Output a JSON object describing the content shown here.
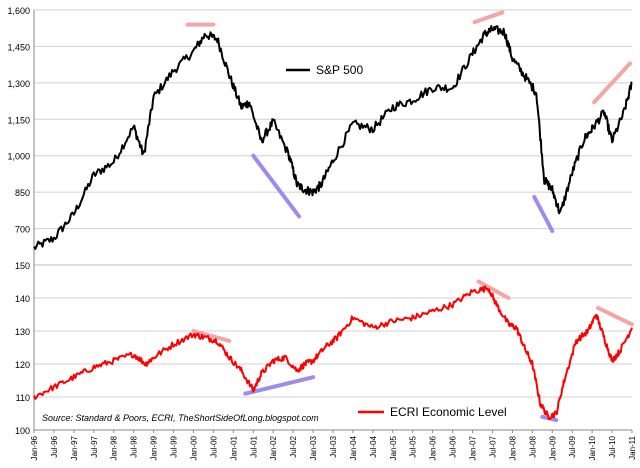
{
  "chart_data": [
    {
      "type": "line",
      "panel": "top",
      "ylim": [
        550,
        1600
      ],
      "yticks": [
        700,
        850,
        1000,
        1150,
        1300,
        1450,
        1600
      ],
      "ytick_labels": [
        "700",
        "850",
        "1,000",
        "1,150",
        "1,300",
        "1,450",
        "1,600"
      ],
      "grid": true,
      "legend_position": "upper-center",
      "series": [
        {
          "name": "S&P 500",
          "color": "#000000",
          "x": [
            1996.0,
            1996.5,
            1997.0,
            1997.5,
            1998.0,
            1998.5,
            1998.75,
            1999.0,
            1999.5,
            2000.0,
            2000.3,
            2000.6,
            2000.9,
            2001.2,
            2001.4,
            2001.7,
            2002.0,
            2002.4,
            2002.6,
            2002.8,
            2003.0,
            2003.2,
            2003.5,
            2004.0,
            2004.5,
            2005.0,
            2005.5,
            2006.0,
            2006.5,
            2007.0,
            2007.3,
            2007.5,
            2007.8,
            2008.0,
            2008.3,
            2008.6,
            2008.8,
            2009.0,
            2009.2,
            2009.5,
            2009.8,
            2010.0,
            2010.3,
            2010.5,
            2010.8,
            2011.0
          ],
          "y": [
            620,
            660,
            760,
            920,
            975,
            1120,
            1000,
            1240,
            1350,
            1430,
            1500,
            1480,
            1330,
            1200,
            1220,
            1060,
            1140,
            1000,
            880,
            860,
            850,
            880,
            980,
            1130,
            1110,
            1200,
            1230,
            1280,
            1280,
            1420,
            1500,
            1520,
            1510,
            1400,
            1330,
            1260,
            900,
            860,
            760,
            930,
            1070,
            1110,
            1180,
            1060,
            1180,
            1300
          ]
        }
      ],
      "annotations": [
        {
          "color": "#f4a6a6",
          "x": [
            1999.85,
            2000.5
          ],
          "y": [
            1540,
            1540
          ]
        },
        {
          "color": "#9c8cf0",
          "x": [
            2001.5,
            2002.65
          ],
          "y": [
            1000,
            750
          ]
        },
        {
          "color": "#f4a6a6",
          "x": [
            2007.05,
            2007.75
          ],
          "y": [
            1550,
            1590
          ]
        },
        {
          "color": "#9c8cf0",
          "x": [
            2008.55,
            2009.0
          ],
          "y": [
            830,
            690
          ]
        },
        {
          "color": "#f4a6a6",
          "x": [
            2010.05,
            2010.95
          ],
          "y": [
            1220,
            1380
          ]
        }
      ]
    },
    {
      "type": "line",
      "panel": "bottom",
      "ylim": [
        100,
        150
      ],
      "yticks": [
        100,
        110,
        120,
        130,
        140,
        150
      ],
      "ytick_labels": [
        "100",
        "110",
        "120",
        "130",
        "140",
        "150"
      ],
      "grid": true,
      "legend_position": "bottom-right",
      "x_categories": [
        "Jan-96",
        "Jul-96",
        "Jan-97",
        "Jul-97",
        "Jan-98",
        "Jul-98",
        "Jan-99",
        "Jul-99",
        "Jan-00",
        "Jul-00",
        "Jan-01",
        "Jul-01",
        "Jan-02",
        "Jul-02",
        "Jan-03",
        "Jul-03",
        "Jan-04",
        "Jul-04",
        "Jan-05",
        "Jul-05",
        "Jan-06",
        "Jul-06",
        "Jan-07",
        "Jul-07",
        "Jan-08",
        "Jul-08",
        "Jan-09",
        "Jul-09",
        "Jan-10",
        "Jul-10",
        "Jan-11"
      ],
      "series": [
        {
          "name": "ECRI Economic Level",
          "color": "#ff0000",
          "x": [
            1996.0,
            1996.5,
            1997.0,
            1997.5,
            1998.0,
            1998.5,
            1998.8,
            1999.0,
            1999.5,
            2000.0,
            2000.3,
            2000.6,
            2000.9,
            2001.2,
            2001.5,
            2001.7,
            2002.0,
            2002.3,
            2002.6,
            2002.8,
            2003.0,
            2003.3,
            2003.6,
            2004.0,
            2004.5,
            2005.0,
            2005.5,
            2006.0,
            2006.5,
            2007.0,
            2007.4,
            2007.6,
            2007.9,
            2008.1,
            2008.3,
            2008.5,
            2008.7,
            2008.9,
            2009.1,
            2009.3,
            2009.6,
            2009.9,
            2010.1,
            2010.3,
            2010.5,
            2010.7,
            2011.0
          ],
          "y": [
            110,
            113,
            116,
            119,
            121,
            123,
            120,
            122,
            126,
            129,
            128,
            127,
            122,
            118,
            112,
            117,
            121,
            122,
            118,
            120,
            121,
            125,
            128,
            134,
            131,
            133,
            134,
            136,
            138,
            142,
            143,
            138,
            132,
            131,
            125,
            120,
            108,
            104,
            105,
            115,
            127,
            130,
            135,
            128,
            121,
            124,
            131
          ]
        }
      ],
      "annotations": [
        {
          "color": "#f4a6a6",
          "x": [
            2000.0,
            2000.9
          ],
          "y": [
            130,
            127
          ]
        },
        {
          "color": "#9c8cf0",
          "x": [
            2001.3,
            2003.0
          ],
          "y": [
            111,
            116
          ]
        },
        {
          "color": "#f4a6a6",
          "x": [
            2007.15,
            2007.9
          ],
          "y": [
            145,
            140
          ]
        },
        {
          "color": "#9c8cf0",
          "x": [
            2008.75,
            2009.1
          ],
          "y": [
            104,
            103
          ]
        },
        {
          "color": "#f4a6a6",
          "x": [
            2010.15,
            2011.0
          ],
          "y": [
            137,
            132
          ]
        }
      ],
      "source_note": "Source: Standard & Poors, ECRI, TheShortSideOfLong.blogspot.com"
    }
  ]
}
